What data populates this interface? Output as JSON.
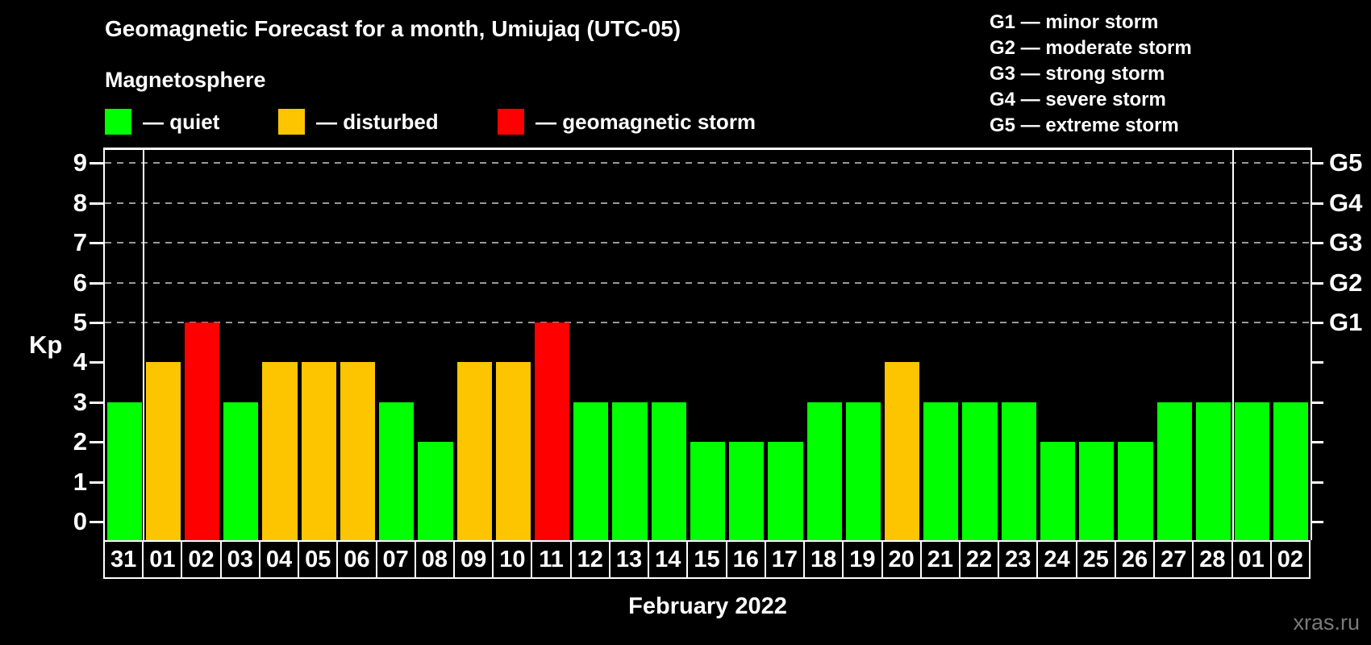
{
  "page": {
    "background": "#000000"
  },
  "header": {
    "title": "Geomagnetic Forecast for a month, Umiujaq (UTC-05)",
    "legend_title": "Magnetosphere",
    "legend": [
      {
        "status": "quiet",
        "label": "— quiet",
        "color": "#00FF00",
        "x": 130
      },
      {
        "status": "disturbed",
        "label": "— disturbed",
        "color": "#FDC400",
        "x": 345
      },
      {
        "status": "storm",
        "label": "— geomagnetic storm",
        "color": "#FF0000",
        "x": 617
      }
    ],
    "g_scale_legend": [
      "G1 — minor storm",
      "G2 — moderate storm",
      "G3 — strong storm",
      "G4 — severe storm",
      "G5 — extreme storm"
    ]
  },
  "chart_data": {
    "type": "bar",
    "title": "Geomagnetic Forecast for a month, Umiujaq (UTC-05)",
    "subtitle": "Magnetosphere",
    "ylabel": "Kp",
    "ylim": [
      0,
      9
    ],
    "y_ticks": [
      0,
      1,
      2,
      3,
      4,
      5,
      6,
      7,
      8,
      9
    ],
    "gridlines_at": [
      5,
      6,
      7,
      8,
      9
    ],
    "grid_style": "dashed",
    "legend_position": "top",
    "categories": [
      "31",
      "01",
      "02",
      "03",
      "04",
      "05",
      "06",
      "07",
      "08",
      "09",
      "10",
      "11",
      "12",
      "13",
      "14",
      "15",
      "16",
      "17",
      "18",
      "19",
      "20",
      "21",
      "22",
      "23",
      "24",
      "25",
      "26",
      "27",
      "28",
      "01",
      "02"
    ],
    "values": [
      3,
      4,
      5,
      3,
      4,
      4,
      4,
      3,
      2,
      4,
      4,
      5,
      3,
      3,
      3,
      2,
      2,
      2,
      3,
      3,
      4,
      3,
      3,
      3,
      2,
      2,
      2,
      3,
      3,
      3,
      3
    ],
    "statuses": [
      "quiet",
      "disturbed",
      "storm",
      "quiet",
      "disturbed",
      "disturbed",
      "disturbed",
      "quiet",
      "quiet",
      "disturbed",
      "disturbed",
      "storm",
      "quiet",
      "quiet",
      "quiet",
      "quiet",
      "quiet",
      "quiet",
      "quiet",
      "quiet",
      "disturbed",
      "quiet",
      "quiet",
      "quiet",
      "quiet",
      "quiet",
      "quiet",
      "quiet",
      "quiet",
      "quiet",
      "quiet"
    ],
    "status_colors": {
      "quiet": "#00FF00",
      "disturbed": "#FDC400",
      "storm": "#FF0000"
    },
    "month_separators_after_index": [
      0,
      28
    ],
    "right_axis_labels": [
      {
        "kp": 5,
        "label": "G1"
      },
      {
        "kp": 6,
        "label": "G2"
      },
      {
        "kp": 7,
        "label": "G3"
      },
      {
        "kp": 8,
        "label": "G4"
      },
      {
        "kp": 9,
        "label": "G5"
      }
    ]
  },
  "footer": {
    "x_axis_title": "February 2022",
    "watermark": "xras.ru"
  }
}
